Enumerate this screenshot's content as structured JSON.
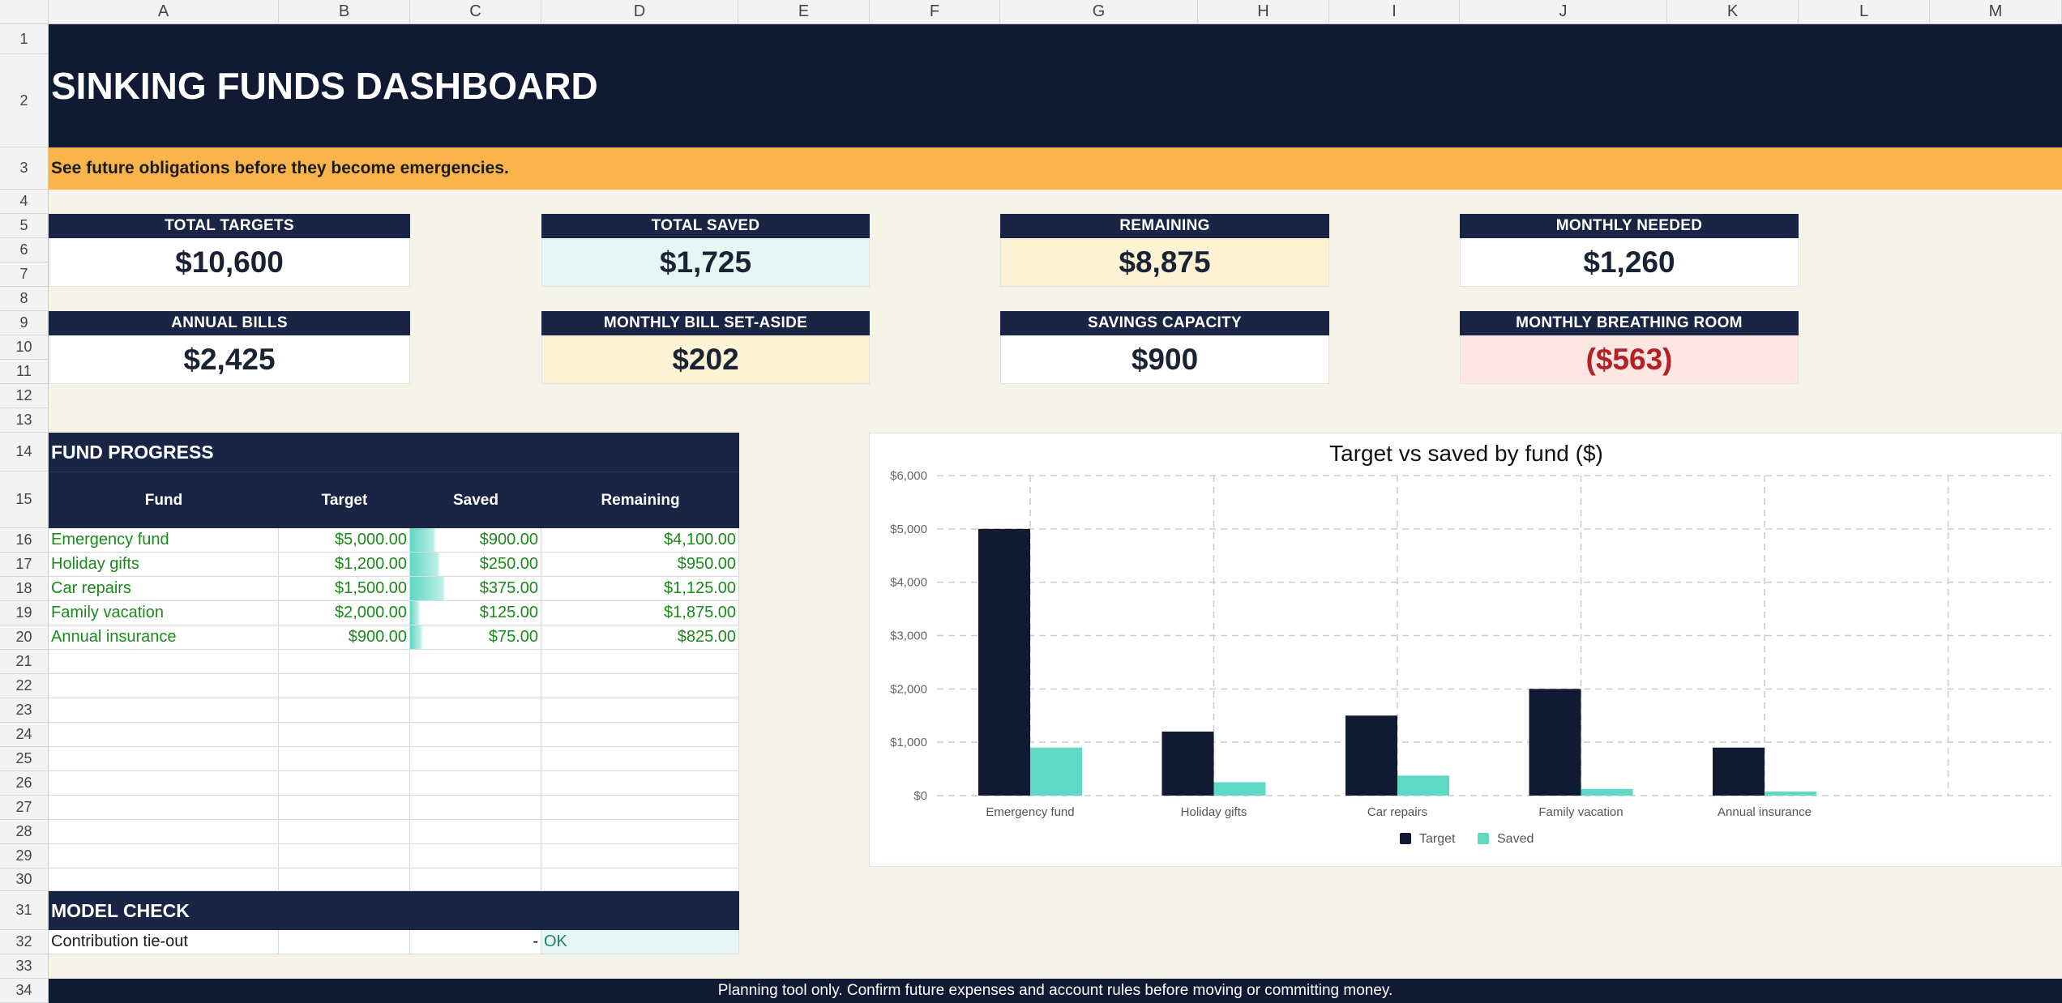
{
  "columns": [
    "A",
    "B",
    "C",
    "D",
    "E",
    "F",
    "G",
    "H",
    "I",
    "J",
    "K",
    "L",
    "M"
  ],
  "rows": [
    "1",
    "2",
    "3",
    "4",
    "5",
    "6",
    "7",
    "8",
    "9",
    "10",
    "11",
    "12",
    "13",
    "14",
    "15",
    "16",
    "17",
    "18",
    "19",
    "20",
    "21",
    "22",
    "23",
    "24",
    "25",
    "26",
    "27",
    "28",
    "29",
    "30",
    "31",
    "32",
    "33",
    "34"
  ],
  "title": "SINKING FUNDS DASHBOARD",
  "subtitle": "See future obligations before they become emergencies.",
  "kpis": [
    {
      "label": "TOTAL TARGETS",
      "value": "$10,600",
      "bg": "#ffffff",
      "color": "#1a2334"
    },
    {
      "label": "TOTAL SAVED",
      "value": "$1,725",
      "bg": "#e6f7f3",
      "color": "#1a2334"
    },
    {
      "label": "REMAINING",
      "value": "$8,875",
      "bg": "#fff3d6",
      "color": "#1a2334"
    },
    {
      "label": "MONTHLY NEEDED",
      "value": "$1,260",
      "bg": "#ffffff",
      "color": "#1a2334"
    },
    {
      "label": "ANNUAL BILLS",
      "value": "$2,425",
      "bg": "#ffffff",
      "color": "#1a2334"
    },
    {
      "label": "MONTHLY BILL SET-ASIDE",
      "value": "$202",
      "bg": "#fff3d6",
      "color": "#1a2334"
    },
    {
      "label": "SAVINGS CAPACITY",
      "value": "$900",
      "bg": "#ffffff",
      "color": "#1a2334"
    },
    {
      "label": "MONTHLY BREATHING ROOM",
      "value": "($563)",
      "bg": "#fde6e4",
      "color": "#b32222"
    }
  ],
  "fund_progress": {
    "heading": "FUND PROGRESS",
    "headers": [
      "Fund",
      "Target",
      "Saved",
      "Remaining"
    ],
    "rows": [
      {
        "fund": "Emergency fund",
        "target": "$5,000.00",
        "saved": "$900.00",
        "remaining": "$4,100.00",
        "saved_ratio": 0.18
      },
      {
        "fund": "Holiday gifts",
        "target": "$1,200.00",
        "saved": "$250.00",
        "remaining": "$950.00",
        "saved_ratio": 0.21
      },
      {
        "fund": "Car repairs",
        "target": "$1,500.00",
        "saved": "$375.00",
        "remaining": "$1,125.00",
        "saved_ratio": 0.25
      },
      {
        "fund": "Family vacation",
        "target": "$2,000.00",
        "saved": "$125.00",
        "remaining": "$1,875.00",
        "saved_ratio": 0.06
      },
      {
        "fund": "Annual insurance",
        "target": "$900.00",
        "saved": "$75.00",
        "remaining": "$825.00",
        "saved_ratio": 0.08
      }
    ]
  },
  "model_check": {
    "heading": "MODEL CHECK",
    "label": "Contribution tie-out",
    "value": "-",
    "status": "OK"
  },
  "footer": "Planning tool only. Confirm future expenses and account rules before moving or committing money.",
  "colors": {
    "navy": "#111a33",
    "header_navy": "#1a2545",
    "accent": "#f9b54c",
    "teal": "#5fd8c4",
    "green": "#1a8a1a",
    "red": "#b32222"
  },
  "chart_data": {
    "type": "bar",
    "title": "Target vs saved by fund ($)",
    "categories": [
      "Emergency fund",
      "Holiday gifts",
      "Car repairs",
      "Family vacation",
      "Annual insurance"
    ],
    "series": [
      {
        "name": "Target",
        "values": [
          5000,
          1200,
          1500,
          2000,
          900
        ],
        "color": "#111a33"
      },
      {
        "name": "Saved",
        "values": [
          900,
          250,
          375,
          125,
          75
        ],
        "color": "#5fd8c4"
      }
    ],
    "ylim": [
      0,
      6000
    ],
    "yticks": [
      "$0",
      "$1,000",
      "$2,000",
      "$3,000",
      "$4,000",
      "$5,000",
      "$6,000"
    ],
    "grid": true,
    "legend": "bottom"
  }
}
